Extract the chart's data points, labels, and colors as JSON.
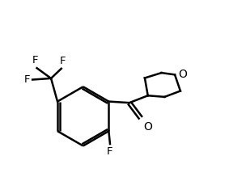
{
  "bg_color": "#ffffff",
  "line_color": "#000000",
  "line_width": 1.8,
  "font_size": 9.5,
  "fig_width": 3.04,
  "fig_height": 2.4,
  "dpi": 100,
  "xlim": [
    -0.5,
    9.0
  ],
  "ylim": [
    0.5,
    8.0
  ]
}
